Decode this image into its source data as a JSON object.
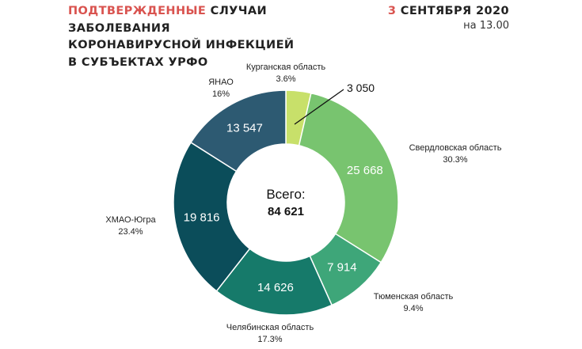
{
  "header": {
    "title_highlight": "ПОДТВЕРЖДЕННЫЕ",
    "title_rest_1": " СЛУЧАИ",
    "title_line_2": "ЗАБОЛЕВАНИЯ",
    "title_line_3": "КОРОНАВИРУСНОЙ ИНФЕКЦИЕЙ",
    "title_line_4": "В СУБЪЕКТАХ УРФО",
    "date_day": "3",
    "date_rest": " СЕНТЯБРЯ 2020",
    "time": "на 13.00"
  },
  "chart_data": {
    "type": "pie",
    "total_caption": "Всего:",
    "total_value": "84 621",
    "slices": [
      {
        "name": "Курганская область",
        "value": 3050,
        "value_label": "3 050",
        "percent": "3.6%",
        "color": "#c8e06a"
      },
      {
        "name": "Свердловская область",
        "value": 25668,
        "value_label": "25 668",
        "percent": "30.3%",
        "color": "#78c46f"
      },
      {
        "name": "Тюменская область",
        "value": 7914,
        "value_label": "7 914",
        "percent": "9.4%",
        "color": "#3ea679"
      },
      {
        "name": "Челябинская область",
        "value": 14626,
        "value_label": "14 626",
        "percent": "17.3%",
        "color": "#167a6a"
      },
      {
        "name": "ХМАО-Югра",
        "value": 19816,
        "value_label": "19 816",
        "percent": "23.4%",
        "color": "#0b4d5a"
      },
      {
        "name": "ЯНАО",
        "value": 13547,
        "value_label": "13 547",
        "percent": "16%",
        "color": "#2d5a72"
      }
    ]
  }
}
